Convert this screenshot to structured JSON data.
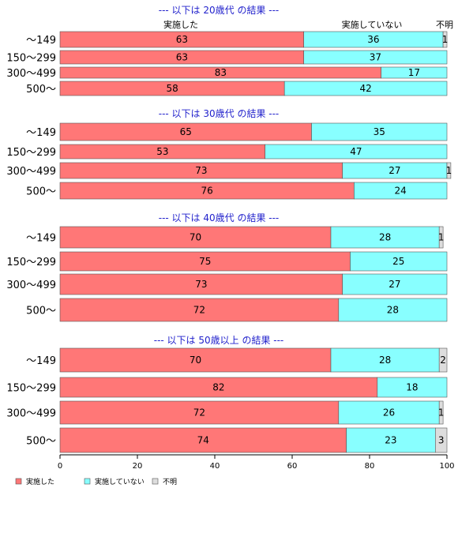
{
  "chart_data": {
    "type": "bar",
    "stacked": true,
    "orientation": "horizontal",
    "column_headers": [
      "実施した",
      "実施していない",
      "不明"
    ],
    "xlim": [
      0,
      100
    ],
    "xticks": [
      "0",
      "20",
      "40",
      "60",
      "80",
      "100"
    ],
    "colors": {
      "done": "#ff7777",
      "not_done": "#88ffff",
      "unknown": "#dddddd"
    },
    "legend": {
      "placement": "bottom-left",
      "entries": [
        "実施した",
        "実施していない",
        "不明"
      ]
    },
    "groups": [
      {
        "title": "--- 以下は 20歳代 の結果 ---",
        "categories": [
          "～149",
          "150～299",
          "300～499",
          "500～"
        ],
        "series": [
          {
            "name": "実施した",
            "values": [
              63,
              63,
              83,
              58
            ]
          },
          {
            "name": "実施していない",
            "values": [
              36,
              37,
              17,
              42
            ]
          },
          {
            "name": "不明",
            "values": [
              1,
              0,
              0,
              0
            ]
          }
        ]
      },
      {
        "title": "--- 以下は 30歳代 の結果 ---",
        "categories": [
          "～149",
          "150～299",
          "300～499",
          "500～"
        ],
        "series": [
          {
            "name": "実施した",
            "values": [
              65,
              53,
              73,
              76
            ]
          },
          {
            "name": "実施していない",
            "values": [
              35,
              47,
              27,
              24
            ]
          },
          {
            "name": "不明",
            "values": [
              0,
              0,
              1,
              0
            ]
          }
        ]
      },
      {
        "title": "--- 以下は 40歳代 の結果 ---",
        "categories": [
          "～149",
          "150～299",
          "300～499",
          "500～"
        ],
        "series": [
          {
            "name": "実施した",
            "values": [
              70,
              75,
              73,
              72
            ]
          },
          {
            "name": "実施していない",
            "values": [
              28,
              25,
              27,
              28
            ]
          },
          {
            "name": "不明",
            "values": [
              1,
              0,
              0,
              0
            ]
          }
        ]
      },
      {
        "title": "--- 以下は 50歳以上 の結果 ---",
        "categories": [
          "～149",
          "150～299",
          "300～499",
          "500～"
        ],
        "series": [
          {
            "name": "実施した",
            "values": [
              70,
              82,
              72,
              74
            ]
          },
          {
            "name": "実施していない",
            "values": [
              28,
              18,
              26,
              23
            ]
          },
          {
            "name": "不明",
            "values": [
              2,
              0,
              1,
              3
            ]
          }
        ]
      }
    ]
  }
}
